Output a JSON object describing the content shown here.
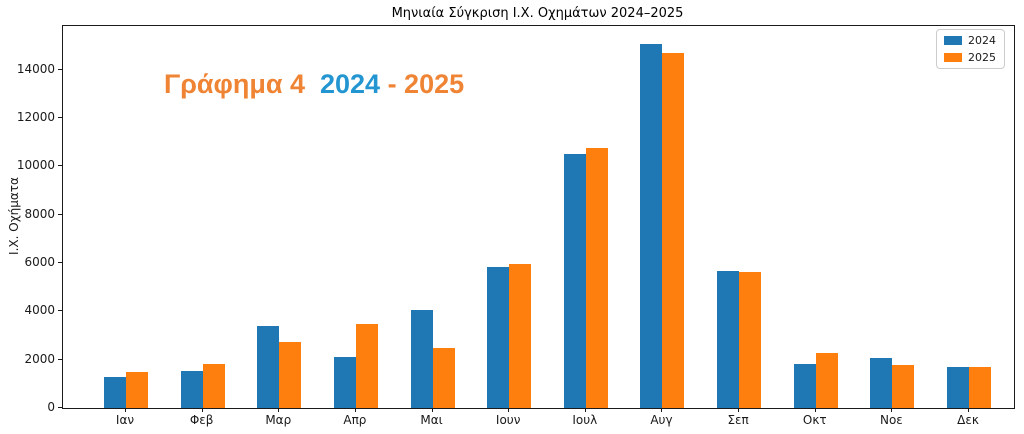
{
  "chart_data": {
    "type": "bar",
    "title": "Μηνιαία Σύγκριση Ι.Χ. Οχημάτων 2024–2025",
    "ylabel": "Ι.Χ. Οχήματα",
    "xlabel": "",
    "categories": [
      "Ιαν",
      "Φεβ",
      "Μαρ",
      "Απρ",
      "Μαι",
      "Ιουν",
      "Ιουλ",
      "Αυγ",
      "Σεπ",
      "Οκτ",
      "Νοε",
      "Δεκ"
    ],
    "series": [
      {
        "name": "2024",
        "color": "#1f77b4",
        "values": [
          1270,
          1530,
          3410,
          2120,
          4040,
          5820,
          10500,
          15070,
          5670,
          1840,
          2090,
          1700
        ]
      },
      {
        "name": "2025",
        "color": "#ff7f0e",
        "values": [
          1510,
          1840,
          2720,
          3480,
          2480,
          5950,
          10740,
          14700,
          5610,
          2260,
          1800,
          1680
        ]
      }
    ],
    "ylim": [
      0,
      15800
    ],
    "yticks": [
      0,
      2000,
      4000,
      6000,
      8000,
      10000,
      12000,
      14000
    ],
    "grid": false,
    "legend_position": "upper right",
    "annotation": {
      "parts": [
        {
          "text": "Γράφημα 4 ",
          "color": "#ef8435"
        },
        {
          "text": " 2024",
          "color": "#2396d2"
        },
        {
          "text": " - 2025",
          "color": "#ef8435"
        }
      ]
    }
  }
}
